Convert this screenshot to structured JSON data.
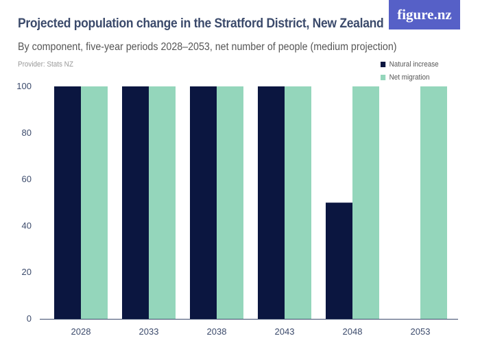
{
  "header": {
    "title": "Projected population change in the Stratford District, New Zealand",
    "subtitle": "By component, five-year periods 2028–2053, net number of people (medium projection)",
    "provider": "Provider: Stats NZ",
    "logo": "figure.nz"
  },
  "chart_data": {
    "type": "bar",
    "title": "Projected population change in the Stratford District, New Zealand",
    "subtitle": "By component, five-year periods 2028–2053, net number of people (medium projection)",
    "categories": [
      "2028",
      "2033",
      "2038",
      "2043",
      "2048",
      "2053"
    ],
    "series": [
      {
        "name": "Natural increase",
        "values": [
          100,
          100,
          100,
          100,
          50,
          0
        ],
        "color": "#0b1640"
      },
      {
        "name": "Net migration",
        "values": [
          100,
          100,
          100,
          100,
          100,
          100
        ],
        "color": "#94d6bb"
      }
    ],
    "ylim": [
      0,
      100
    ],
    "yticks": [
      "0",
      "20",
      "40",
      "60",
      "80",
      "100"
    ],
    "grid": false,
    "legend": "top-right"
  }
}
